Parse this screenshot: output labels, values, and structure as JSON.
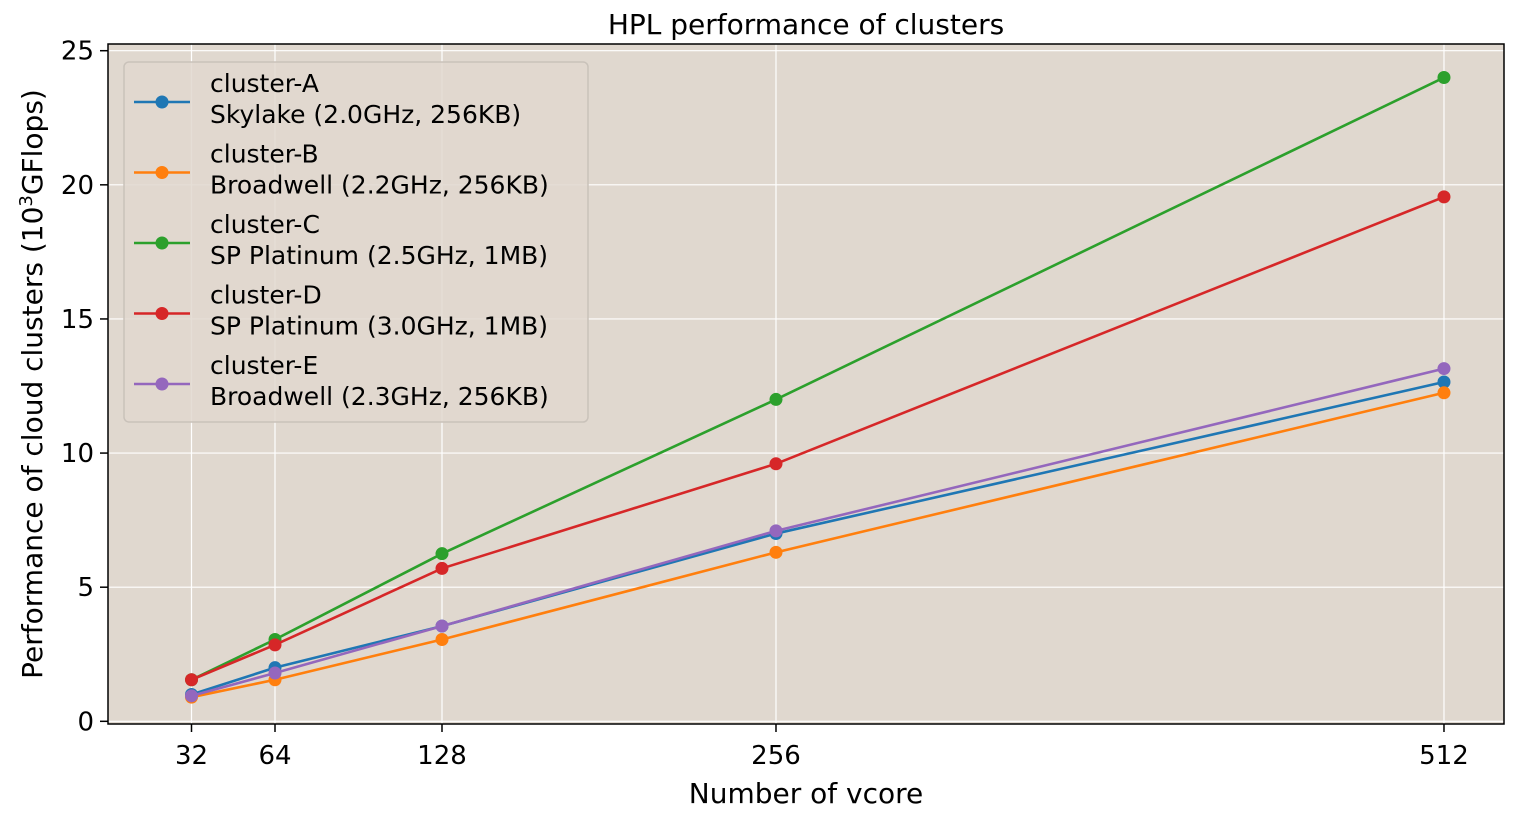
{
  "chart_data": {
    "type": "line",
    "title": "HPL performance of clusters",
    "xlabel": "Number of vcore",
    "ylabel_main": "Performance of cloud clusters (10",
    "ylabel_sup": "3",
    "ylabel_unit": "GFlops)",
    "x": [
      32,
      64,
      128,
      256,
      512
    ],
    "x_ticks": [
      "32",
      "64",
      "128",
      "256",
      "512"
    ],
    "y_ticks": [
      "0",
      "5",
      "10",
      "15",
      "20",
      "25"
    ],
    "xlim": [
      0,
      535
    ],
    "ylim": [
      -0.1,
      25.25
    ],
    "grid": true,
    "legend_position": "top-left",
    "plot_background": "#e0d8cf",
    "series": [
      {
        "name_line1": "cluster-A",
        "name_line2": "Skylake (2.0GHz, 256KB)",
        "color": "#1f77b4",
        "values": [
          1.0,
          2.0,
          3.55,
          7.0,
          12.65
        ]
      },
      {
        "name_line1": "cluster-B",
        "name_line2": "Broadwell (2.2GHz, 256KB)",
        "color": "#ff7f0e",
        "values": [
          0.9,
          1.55,
          3.05,
          6.3,
          12.25
        ]
      },
      {
        "name_line1": "cluster-C",
        "name_line2": "SP Platinum (2.5GHz, 1MB)",
        "color": "#2ca02c",
        "values": [
          1.55,
          3.05,
          6.25,
          12.0,
          24.0
        ]
      },
      {
        "name_line1": "cluster-D",
        "name_line2": "SP Platinum (3.0GHz, 1MB)",
        "color": "#d62728",
        "values": [
          1.55,
          2.85,
          5.7,
          9.6,
          19.55
        ]
      },
      {
        "name_line1": "cluster-E",
        "name_line2": "Broadwell (2.3GHz, 256KB)",
        "color": "#9467bd",
        "values": [
          0.95,
          1.8,
          3.55,
          7.1,
          13.15
        ]
      }
    ]
  }
}
